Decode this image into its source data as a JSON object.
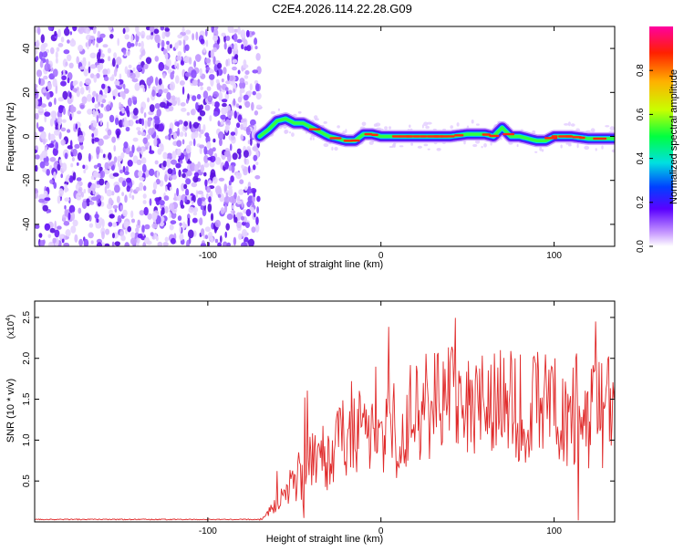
{
  "title": "C2E4.2026.114.22.28.G09",
  "chart_data": [
    {
      "type": "heatmap",
      "xlabel": "Height of straight line (km)",
      "ylabel": "Frequency (Hz)",
      "xlim": [
        -200,
        135
      ],
      "ylim": [
        -50,
        50
      ],
      "xticks": [
        -100,
        0,
        100
      ],
      "yticks": [
        -40,
        -20,
        0,
        20,
        40
      ],
      "noise_region_x": [
        -200,
        -70
      ],
      "ridge": {
        "x": [
          -70,
          -65,
          -60,
          -55,
          -50,
          -45,
          -40,
          -35,
          -30,
          -25,
          -20,
          -15,
          -10,
          -5,
          0,
          10,
          20,
          30,
          40,
          50,
          60,
          65,
          70,
          75,
          80,
          90,
          95,
          100,
          110,
          120,
          135
        ],
        "y": [
          0,
          3,
          7,
          8,
          6,
          6,
          4,
          2,
          0,
          -1,
          -2,
          -2,
          1,
          1,
          0,
          0,
          0,
          0,
          0,
          1,
          1,
          0,
          4,
          0,
          0,
          -2,
          -2,
          0,
          0,
          -1,
          -1
        ]
      },
      "colorbar": {
        "label": "Normalized spectral amplitude",
        "range": [
          0,
          1
        ],
        "ticks": [
          0.0,
          0.2,
          0.4,
          0.6,
          0.8
        ]
      }
    },
    {
      "type": "line",
      "xlabel": "Height of straight line (km)",
      "ylabel": "SNR (10 * v/v)",
      "multiplier": "(x10",
      "multiplier_exp": "4",
      "xlim": [
        -200,
        135
      ],
      "ylim": [
        0,
        2.7
      ],
      "xticks": [
        -100,
        0,
        100
      ],
      "yticks": [
        0.5,
        1.0,
        1.5,
        2.0,
        2.5
      ],
      "color": "#e02a2a",
      "trend": {
        "x": [
          -200,
          -70,
          -60,
          -50,
          -40,
          -30,
          -20,
          -10,
          0,
          20,
          40,
          60,
          80,
          100,
          120,
          135
        ],
        "y": [
          0.03,
          0.03,
          0.2,
          0.5,
          0.7,
          0.85,
          1.0,
          1.1,
          1.05,
          1.3,
          1.45,
          1.45,
          1.4,
          1.4,
          1.35,
          1.35
        ]
      }
    }
  ]
}
